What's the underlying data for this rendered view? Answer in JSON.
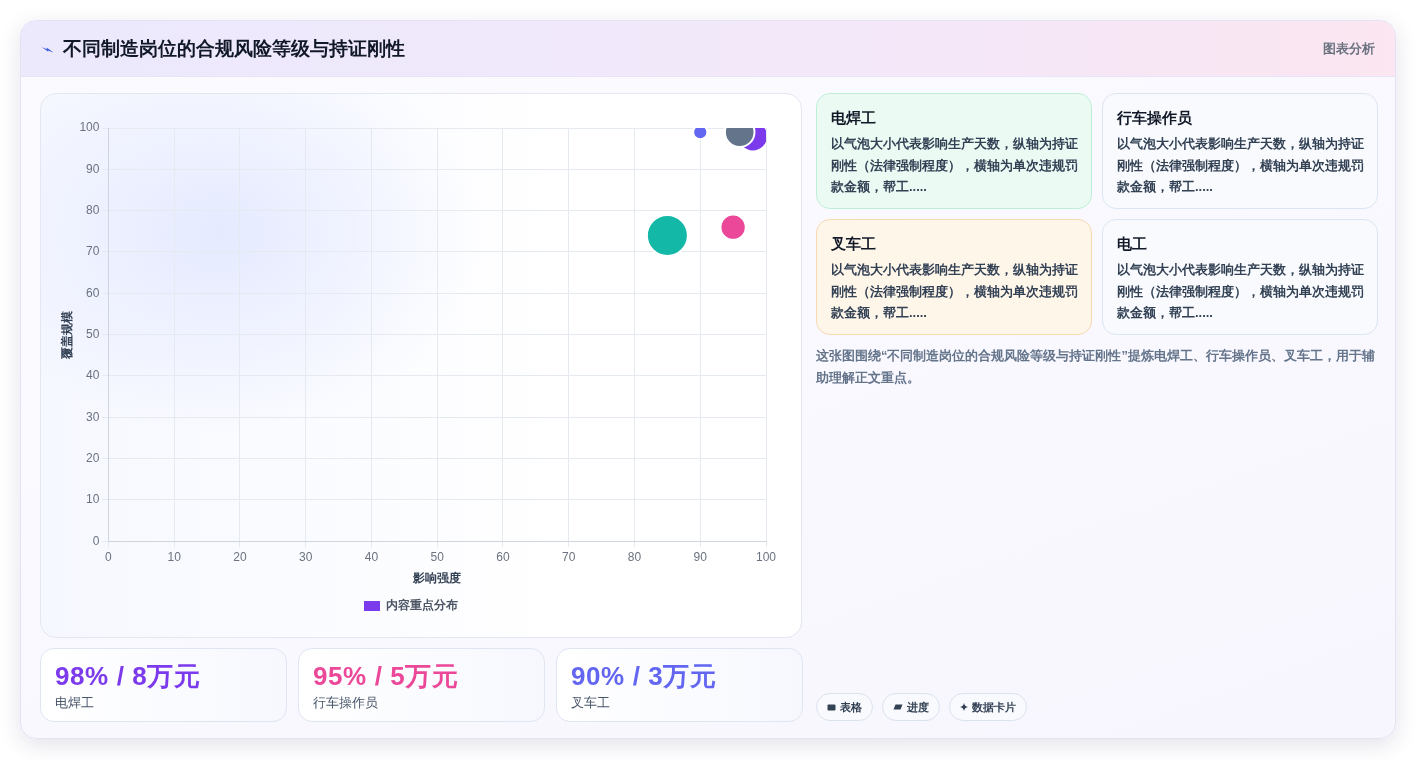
{
  "chart_data": [
    {
      "type": "bubble",
      "title": "不同制造岗位的合规风险等级与持证刚性",
      "annotations": [
        "图表分析"
      ],
      "xlabel": "影响强度",
      "ylabel": "覆盖规模",
      "x": [
        98,
        95,
        90,
        85,
        96
      ],
      "series": [
        {
          "name": "内容重点分布",
          "color": "#7c3aed",
          "colors": [
            "#7c3aed",
            "#ec4899",
            "#6366f1",
            "#14b8a6",
            "#64748b"
          ],
          "values": [
            98,
            76,
            99,
            74,
            99
          ],
          "sizes": [
            0.55,
            0.38,
            0.12,
            1,
            0.52
          ]
        }
      ],
      "xlim": [
        0,
        100
      ],
      "xticks": [
        0,
        10,
        20,
        30,
        40,
        50,
        60,
        70,
        80,
        90,
        100
      ],
      "ylim": [
        0,
        100
      ],
      "yticks": [
        0,
        10,
        20,
        30,
        40,
        50,
        60,
        70,
        80,
        90,
        100
      ],
      "grid": true,
      "legend": "bottom"
    },
    {
      "type": "other",
      "title": "98% / 8万元",
      "subtitle": "电焊工"
    },
    {
      "type": "other",
      "title": "95% / 5万元",
      "subtitle": "行车操作员"
    },
    {
      "type": "other",
      "title": "90% / 3万元",
      "subtitle": "叉车工"
    },
    {
      "type": "other",
      "title": "电焊工",
      "annotations": [
        "以气泡大小代表影响生产天数，纵轴为持证刚性（法律强制程度），横轴为单次违规罚款金额，帮工....."
      ]
    },
    {
      "type": "other",
      "title": "行车操作员",
      "annotations": [
        "以气泡大小代表影响生产天数，纵轴为持证刚性（法律强制程度），横轴为单次违规罚款金额，帮工....."
      ]
    },
    {
      "type": "other",
      "title": "叉车工",
      "annotations": [
        "以气泡大小代表影响生产天数，纵轴为持证刚性（法律强制程度），横轴为单次违规罚款金额，帮工....."
      ]
    },
    {
      "type": "other",
      "title": "电工",
      "annotations": [
        "以气泡大小代表影响生产天数，纵轴为持证刚性（法律强制程度），横轴为单次违规罚款金额，帮工....."
      ]
    },
    {
      "type": "other",
      "annotations": [
        "这张图围绕“不同制造岗位的合规风险等级与持证刚性”提炼电焊工、行车操作员、叉车工，用于辅助理解正文重点。"
      ]
    },
    {
      "type": "other",
      "annotations": [
        "表格",
        "进度",
        "数据卡片"
      ]
    }
  ]
}
